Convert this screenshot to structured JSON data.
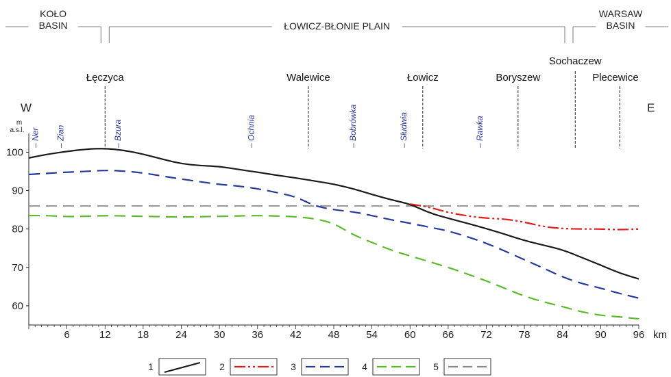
{
  "chart_data": {
    "type": "line",
    "xlabel": "",
    "ylabel": "",
    "x_unit": "km",
    "y_unit_top": "m",
    "y_unit_bottom": "a.s.l.",
    "xlim": [
      0,
      96
    ],
    "ylim": [
      55,
      104
    ],
    "xticks": [
      6,
      12,
      18,
      24,
      30,
      36,
      42,
      48,
      54,
      60,
      66,
      72,
      78,
      84,
      90,
      96
    ],
    "yticks": [
      60,
      70,
      80,
      90,
      100
    ],
    "west_label": "W",
    "east_label": "E",
    "regions": [
      {
        "name": "KOŁO",
        "name2": "BASIN",
        "x_from": 0,
        "x_to": 12
      },
      {
        "name": "ŁOWICZ-BŁONIE PLAIN",
        "name2": "",
        "x_from": 12,
        "x_to": 85
      },
      {
        "name": "WARSAW",
        "name2": "BASIN",
        "x_from": 85,
        "x_to": 96
      }
    ],
    "towns": [
      {
        "name": "Łęczyca",
        "x": 12
      },
      {
        "name": "Walewice",
        "x": 44
      },
      {
        "name": "Łowicz",
        "x": 62
      },
      {
        "name": "Boryszew",
        "x": 77
      },
      {
        "name": "Sochaczew",
        "x": 86
      },
      {
        "name": "Plecewice",
        "x": 93
      }
    ],
    "rivers": [
      {
        "name": "Ner",
        "x": 1
      },
      {
        "name": "Zian",
        "x": 5
      },
      {
        "name": "Bzura",
        "x": 14
      },
      {
        "name": "Ochnia",
        "x": 35
      },
      {
        "name": "Bobrówka",
        "x": 51
      },
      {
        "name": "Słudwia",
        "x": 59
      },
      {
        "name": "Rawka",
        "x": 71
      }
    ],
    "series": [
      {
        "name": "1",
        "color": "#1a1a1a",
        "style": "solid",
        "x": [
          0,
          3,
          6,
          9,
          12,
          15,
          18,
          21,
          24,
          27,
          30,
          33,
          36,
          39,
          42,
          45,
          48,
          51,
          54,
          57,
          60,
          63,
          66,
          69,
          72,
          75,
          78,
          81,
          84,
          87,
          90,
          93,
          96
        ],
        "values": [
          98.5,
          99.5,
          100.2,
          100.8,
          101,
          100.5,
          99.5,
          98.2,
          97,
          96.5,
          96.3,
          95.5,
          94.8,
          94,
          93.3,
          92.5,
          91.7,
          90.5,
          89,
          87.6,
          86.5,
          84.2,
          82.8,
          81.5,
          80.1,
          78.6,
          77,
          75.8,
          74.6,
          72.6,
          70.6,
          68.5,
          67
        ]
      },
      {
        "name": "2",
        "color": "#e01b1b",
        "style": "dash-dot-dot",
        "x": [
          60,
          63,
          66,
          69,
          72,
          75,
          78,
          81,
          84,
          87,
          90,
          93,
          96
        ],
        "values": [
          86.5,
          85.7,
          84.3,
          83.4,
          82.8,
          82.6,
          81.8,
          80.6,
          80.1,
          80,
          80,
          79.8,
          80
        ]
      },
      {
        "name": "3",
        "color": "#253a9a",
        "style": "dashed",
        "x": [
          0,
          3,
          6,
          9,
          12,
          15,
          18,
          21,
          24,
          27,
          30,
          33,
          36,
          39,
          42,
          45,
          48,
          51,
          54,
          57,
          60,
          63,
          66,
          69,
          72,
          75,
          78,
          81,
          84,
          87,
          90,
          93,
          96
        ],
        "values": [
          94.2,
          94.5,
          94.8,
          95,
          95.3,
          95.1,
          94.6,
          93.8,
          93,
          92.3,
          91.6,
          91.2,
          90.5,
          89.5,
          88.4,
          86,
          85,
          84.5,
          83.5,
          82.4,
          81.5,
          80.5,
          79.5,
          78,
          76.3,
          74.2,
          72,
          69.8,
          67.5,
          65.8,
          64.6,
          63.2,
          62
        ]
      },
      {
        "name": "4",
        "color": "#5cb92b",
        "style": "dashed",
        "x": [
          0,
          3,
          6,
          9,
          12,
          15,
          18,
          21,
          24,
          27,
          30,
          33,
          36,
          39,
          42,
          45,
          48,
          51,
          54,
          57,
          60,
          63,
          66,
          69,
          72,
          75,
          78,
          81,
          84,
          87,
          90,
          93,
          96
        ],
        "values": [
          83.5,
          83.5,
          83.2,
          83.3,
          83.5,
          83.4,
          83.3,
          83.2,
          83.1,
          83.2,
          83.3,
          83.4,
          83.5,
          83.4,
          83.2,
          82.7,
          81.5,
          78.5,
          76.5,
          74.5,
          73,
          71.5,
          70,
          68.3,
          66.5,
          64.5,
          62.5,
          61,
          59.8,
          58.4,
          57.5,
          57.1,
          56.6
        ]
      },
      {
        "name": "5",
        "color": "#8a8a8a",
        "style": "dashed",
        "x": [
          0,
          96
        ],
        "values": [
          86,
          86
        ]
      }
    ],
    "legend": [
      {
        "label": "1",
        "color": "#1a1a1a",
        "style": "solid"
      },
      {
        "label": "2",
        "color": "#e01b1b",
        "style": "dash-dot-dot"
      },
      {
        "label": "3",
        "color": "#253a9a",
        "style": "dashed"
      },
      {
        "label": "4",
        "color": "#5cb92b",
        "style": "dashed"
      },
      {
        "label": "5",
        "color": "#8a8a8a",
        "style": "dashed"
      }
    ]
  }
}
